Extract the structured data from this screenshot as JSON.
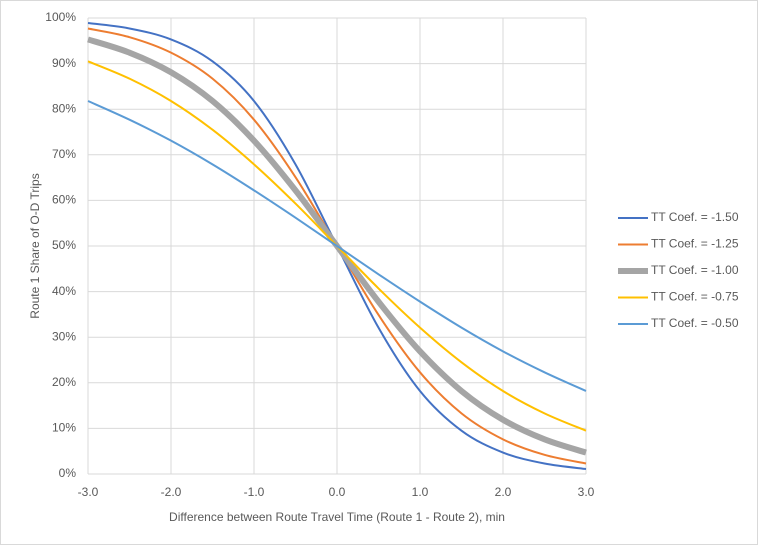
{
  "chart_data": {
    "type": "line",
    "xlabel": "Difference between Route Travel Time (Route 1  - Route 2), min",
    "ylabel": "Route 1 Share of  O-D Trips",
    "x": [
      -3,
      -2.5,
      -2,
      -1.5,
      -1,
      -0.5,
      0,
      0.5,
      1,
      1.5,
      2,
      2.5,
      3
    ],
    "series": [
      {
        "name": "TT Coef. = -1.50",
        "color": "#4472c4",
        "line_width": 2,
        "values": [
          98.9,
          97.7,
          95.3,
          90.5,
          81.8,
          67.9,
          50,
          32.1,
          18.2,
          9.5,
          4.7,
          2.3,
          1.1
        ]
      },
      {
        "name": "TT Coef. = -1.25",
        "color": "#ed7d31",
        "line_width": 2,
        "values": [
          97.7,
          95.8,
          92.4,
          86.7,
          77.7,
          65.1,
          50,
          34.9,
          22.3,
          13.3,
          7.6,
          4.2,
          2.3
        ]
      },
      {
        "name": "TT Coef. = -1.00",
        "color": "#a5a5a5",
        "line_width": 6,
        "values": [
          95.3,
          92.4,
          88.1,
          81.8,
          73.1,
          62.2,
          50,
          37.8,
          26.9,
          18.2,
          11.9,
          7.6,
          4.7
        ]
      },
      {
        "name": "TT Coef. = -0.75",
        "color": "#ffc000",
        "line_width": 2,
        "values": [
          90.5,
          86.7,
          81.8,
          75.5,
          67.9,
          59.3,
          50,
          40.7,
          32.1,
          24.5,
          18.2,
          13.3,
          9.5
        ]
      },
      {
        "name": "TT Coef. = -0.50",
        "color": "#5b9bd5",
        "line_width": 2,
        "values": [
          81.8,
          77.7,
          73.1,
          67.9,
          62.2,
          56.2,
          50,
          43.8,
          37.8,
          32.1,
          26.9,
          22.3,
          18.2
        ]
      }
    ],
    "xlim": [
      -3,
      3
    ],
    "xticks": [
      {
        "value": -3,
        "label": "-3.0"
      },
      {
        "value": -2,
        "label": "-2.0"
      },
      {
        "value": -1,
        "label": "-1.0"
      },
      {
        "value": 0,
        "label": "0.0"
      },
      {
        "value": 1,
        "label": "1.0"
      },
      {
        "value": 2,
        "label": "2.0"
      },
      {
        "value": 3,
        "label": "3.0"
      }
    ],
    "ylim": [
      0,
      100
    ],
    "yticks": [
      {
        "value": 0,
        "label": "0%"
      },
      {
        "value": 10,
        "label": "10%"
      },
      {
        "value": 20,
        "label": "20%"
      },
      {
        "value": 30,
        "label": "30%"
      },
      {
        "value": 40,
        "label": "40%"
      },
      {
        "value": 50,
        "label": "50%"
      },
      {
        "value": 60,
        "label": "60%"
      },
      {
        "value": 70,
        "label": "70%"
      },
      {
        "value": 80,
        "label": "80%"
      },
      {
        "value": 90,
        "label": "90%"
      },
      {
        "value": 100,
        "label": "100%"
      }
    ],
    "grid": true,
    "legend": "right"
  }
}
